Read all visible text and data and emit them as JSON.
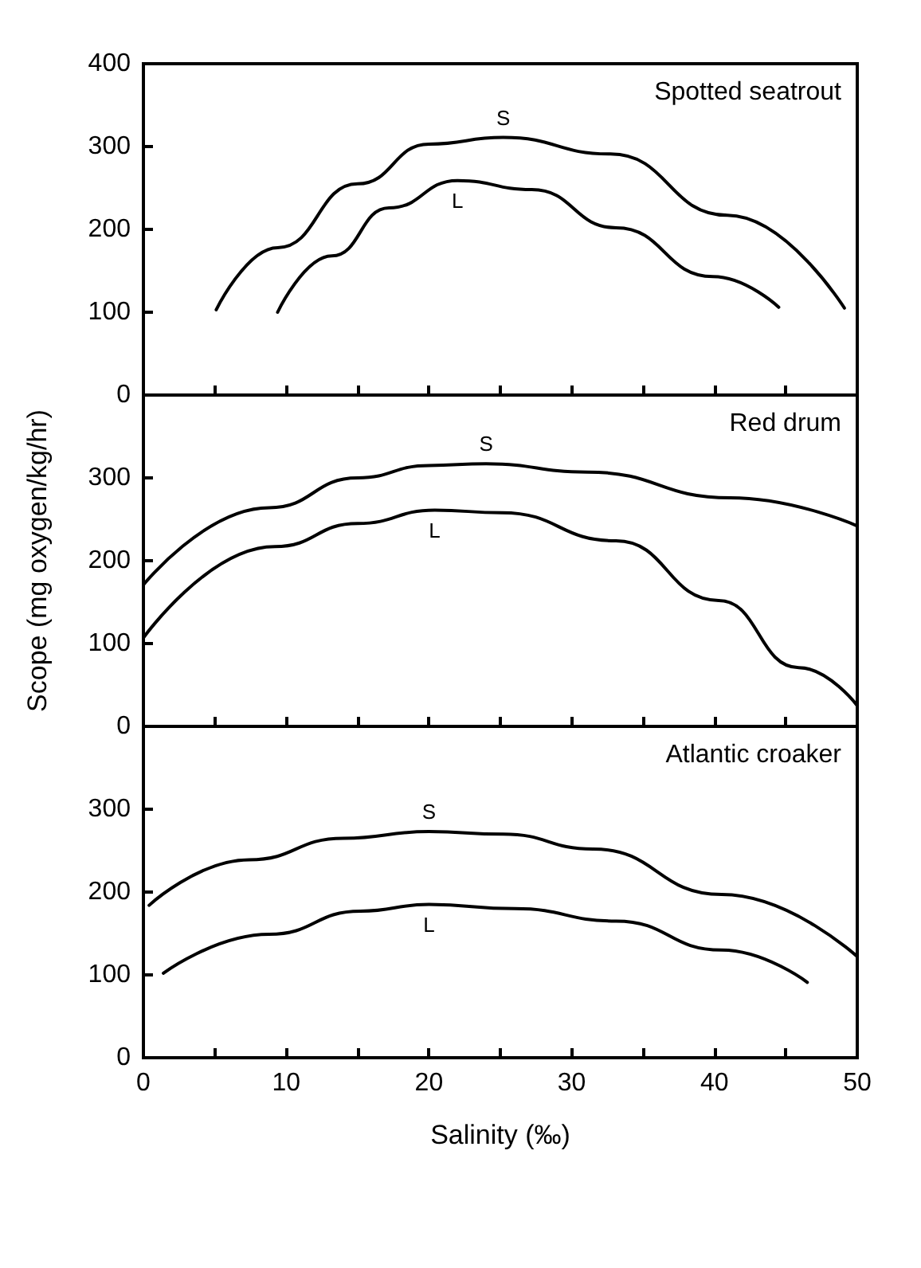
{
  "chart_data": [
    {
      "type": "line",
      "xlim": [
        0,
        50
      ],
      "xticks": [
        0,
        {
          "value": 5,
          "label": null
        },
        10,
        {
          "value": 15,
          "label": null
        },
        20,
        {
          "value": 25,
          "label": null
        },
        30,
        {
          "value": 35,
          "label": null
        },
        40,
        {
          "value": 45,
          "label": null
        },
        50
      ],
      "ylim": [
        0,
        400
      ],
      "yticks": [
        0,
        100,
        200,
        300,
        400
      ],
      "tick_labels": "y",
      "grid": false,
      "legend": false,
      "marker": "none",
      "line_style": "solid",
      "annotations": [
        "Spotted seatrout"
      ],
      "series": [
        {
          "name": "S",
          "color": "#000000",
          "x": [
            5.1,
            9.4,
            15,
            20,
            25.2,
            32.7,
            40.9,
            49.1
          ],
          "values": [
            103,
            178,
            255,
            303,
            311,
            291,
            217,
            105
          ]
        },
        {
          "name": "L",
          "color": "#000000",
          "x": [
            9.4,
            13.2,
            17.2,
            22,
            27.2,
            33.1,
            39.9,
            44.5
          ],
          "values": [
            100,
            168,
            226,
            259,
            248,
            202,
            143,
            106
          ]
        }
      ]
    },
    {
      "type": "line",
      "xlim": [
        0,
        50
      ],
      "xticks": [
        0,
        {
          "value": 5,
          "label": null
        },
        10,
        {
          "value": 15,
          "label": null
        },
        20,
        {
          "value": 25,
          "label": null
        },
        30,
        {
          "value": 35,
          "label": null
        },
        40,
        {
          "value": 45,
          "label": null
        },
        50
      ],
      "ylim": [
        0,
        400
      ],
      "yticks": [
        0,
        100,
        200,
        300,
        {
          "value": 400,
          "label": null
        }
      ],
      "tick_labels": "y",
      "grid": false,
      "legend": false,
      "marker": "none",
      "line_style": "solid",
      "ylabel": "Scope (mg oxygen/kg/hr)",
      "annotations": [
        "Red drum"
      ],
      "series": [
        {
          "name": "S",
          "color": "#000000",
          "x": [
            0,
            8.8,
            15,
            20,
            24,
            31.1,
            41.1,
            50
          ],
          "values": [
            171,
            264,
            300,
            315,
            317,
            307,
            276,
            242
          ]
        },
        {
          "name": "L",
          "color": "#000000",
          "x": [
            0,
            9.2,
            15,
            20.4,
            25.1,
            33.1,
            40.3,
            45.9,
            50
          ],
          "values": [
            107,
            217,
            245,
            261,
            258,
            224,
            152,
            71,
            25
          ]
        }
      ]
    },
    {
      "type": "line",
      "xlim": [
        0,
        50
      ],
      "xticks": [
        0,
        {
          "value": 5,
          "label": null
        },
        10,
        {
          "value": 15,
          "label": null
        },
        20,
        {
          "value": 25,
          "label": null
        },
        30,
        {
          "value": 35,
          "label": null
        },
        40,
        {
          "value": 45,
          "label": null
        },
        50
      ],
      "ylim": [
        0,
        400
      ],
      "yticks": [
        0,
        100,
        200,
        300,
        {
          "value": 400,
          "label": null
        }
      ],
      "grid": false,
      "legend": false,
      "marker": "none",
      "line_style": "solid",
      "xlabel": "Salinity (‰)",
      "annotations": [
        "Atlantic croaker"
      ],
      "series": [
        {
          "name": "S",
          "color": "#000000",
          "x": [
            0.4,
            7.4,
            14,
            20,
            25.2,
            31.5,
            40.5,
            50
          ],
          "values": [
            184,
            239,
            265,
            273,
            270,
            252,
            197,
            122
          ]
        },
        {
          "name": "L",
          "color": "#000000",
          "x": [
            1.4,
            8.8,
            15.2,
            20,
            26,
            33.1,
            40.5,
            46.5
          ],
          "values": [
            102,
            149,
            177,
            185,
            180,
            165,
            130,
            91
          ]
        }
      ]
    }
  ]
}
